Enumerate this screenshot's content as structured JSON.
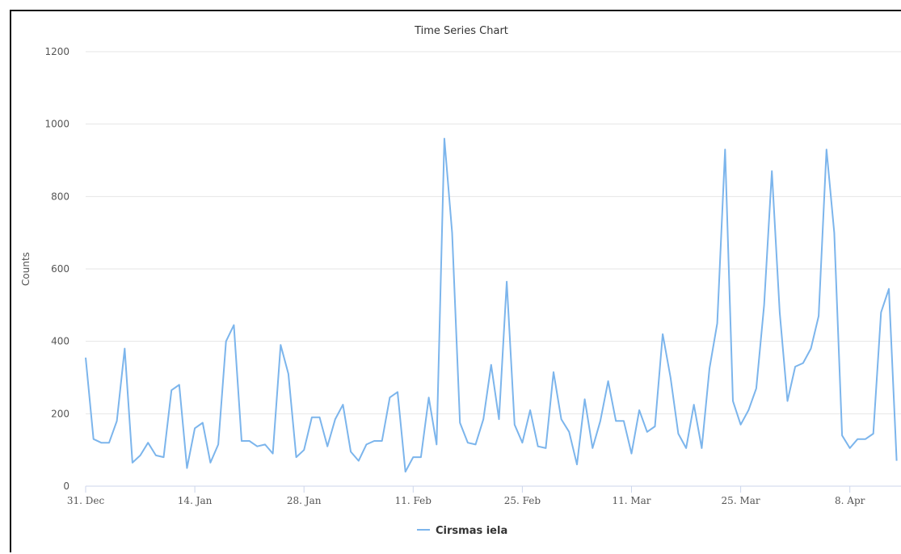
{
  "chart_data": {
    "type": "line",
    "title": "Time Series Chart",
    "ylabel": "Counts",
    "xlabel": "",
    "ylim": [
      0,
      1200
    ],
    "y_ticks": [
      0,
      200,
      400,
      600,
      800,
      1000,
      1200
    ],
    "x_start": "2017-12-31",
    "x_end": "2018-04-14",
    "x_ticks": [
      {
        "date": "2017-12-31",
        "label": "31. Dec"
      },
      {
        "date": "2018-01-14",
        "label": "14. Jan"
      },
      {
        "date": "2018-01-28",
        "label": "28. Jan"
      },
      {
        "date": "2018-02-11",
        "label": "11. Feb"
      },
      {
        "date": "2018-02-25",
        "label": "25. Feb"
      },
      {
        "date": "2018-03-11",
        "label": "11. Mar"
      },
      {
        "date": "2018-03-25",
        "label": "25. Mar"
      },
      {
        "date": "2018-04-08",
        "label": "8. Apr"
      }
    ],
    "grid": true,
    "legend_position": "bottom-center",
    "series": [
      {
        "name": "Cirsmas iela",
        "color": "#7cb5ec",
        "values": [
          355,
          130,
          120,
          120,
          180,
          380,
          65,
          85,
          120,
          85,
          80,
          265,
          280,
          50,
          160,
          175,
          65,
          115,
          400,
          445,
          125,
          125,
          110,
          115,
          90,
          390,
          310,
          80,
          100,
          190,
          190,
          110,
          185,
          225,
          95,
          70,
          115,
          125,
          125,
          245,
          260,
          40,
          80,
          80,
          245,
          115,
          960,
          700,
          175,
          120,
          115,
          185,
          335,
          185,
          565,
          170,
          120,
          210,
          110,
          105,
          315,
          185,
          150,
          60,
          240,
          105,
          180,
          290,
          180,
          180,
          90,
          210,
          150,
          165,
          420,
          300,
          145,
          105,
          225,
          105,
          325,
          450,
          930,
          235,
          170,
          210,
          270,
          500,
          870,
          480,
          235,
          330,
          340,
          380,
          470,
          930,
          700,
          140,
          105,
          130,
          130,
          145,
          480,
          545,
          70
        ]
      }
    ]
  }
}
